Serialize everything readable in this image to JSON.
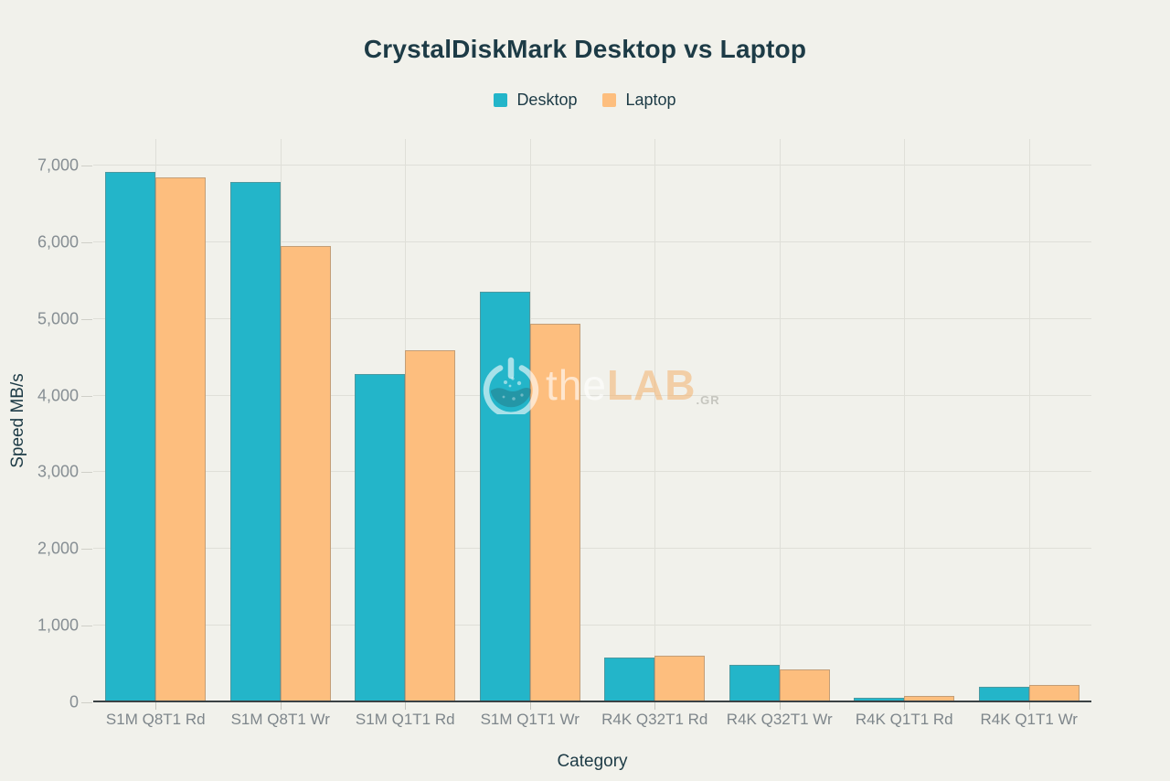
{
  "chart_data": {
    "type": "bar",
    "title": "CrystalDiskMark Desktop vs Laptop",
    "xlabel": "Category",
    "ylabel": "Speed MB/s",
    "ylim": [
      0,
      7000
    ],
    "ytick_step": 1000,
    "ytick_labels": [
      "0",
      "1,000",
      "2,000",
      "3,000",
      "4,000",
      "5,000",
      "6,000",
      "7,000"
    ],
    "grid": "both",
    "legend_position": "top-center",
    "categories": [
      "S1M Q8T1 Rd",
      "S1M Q8T1 Wr",
      "S1M Q1T1 Rd",
      "S1M Q1T1 Wr",
      "R4K Q32T1 Rd",
      "R4K Q32T1 Wr",
      "R4K Q1T1 Rd",
      "R4K Q1T1 Wr"
    ],
    "series": [
      {
        "name": "Desktop",
        "color": "#23B5C9",
        "values": [
          6920,
          6780,
          4280,
          5360,
          590,
          485,
          55,
          205
        ]
      },
      {
        "name": "Laptop",
        "color": "#FDBE7E",
        "values": [
          6840,
          5950,
          4590,
          4940,
          610,
          435,
          85,
          225
        ]
      }
    ]
  },
  "watermark": {
    "icon": "flask-power-icon",
    "text_the": "the",
    "text_lab": "LAB",
    "text_suffix": ".GR"
  },
  "colors": {
    "background": "#F1F1EB",
    "title_text": "#1D3B46",
    "tick_label": "#868E93",
    "gridline": "#DFDFD8",
    "baseline": "#3B4245"
  }
}
